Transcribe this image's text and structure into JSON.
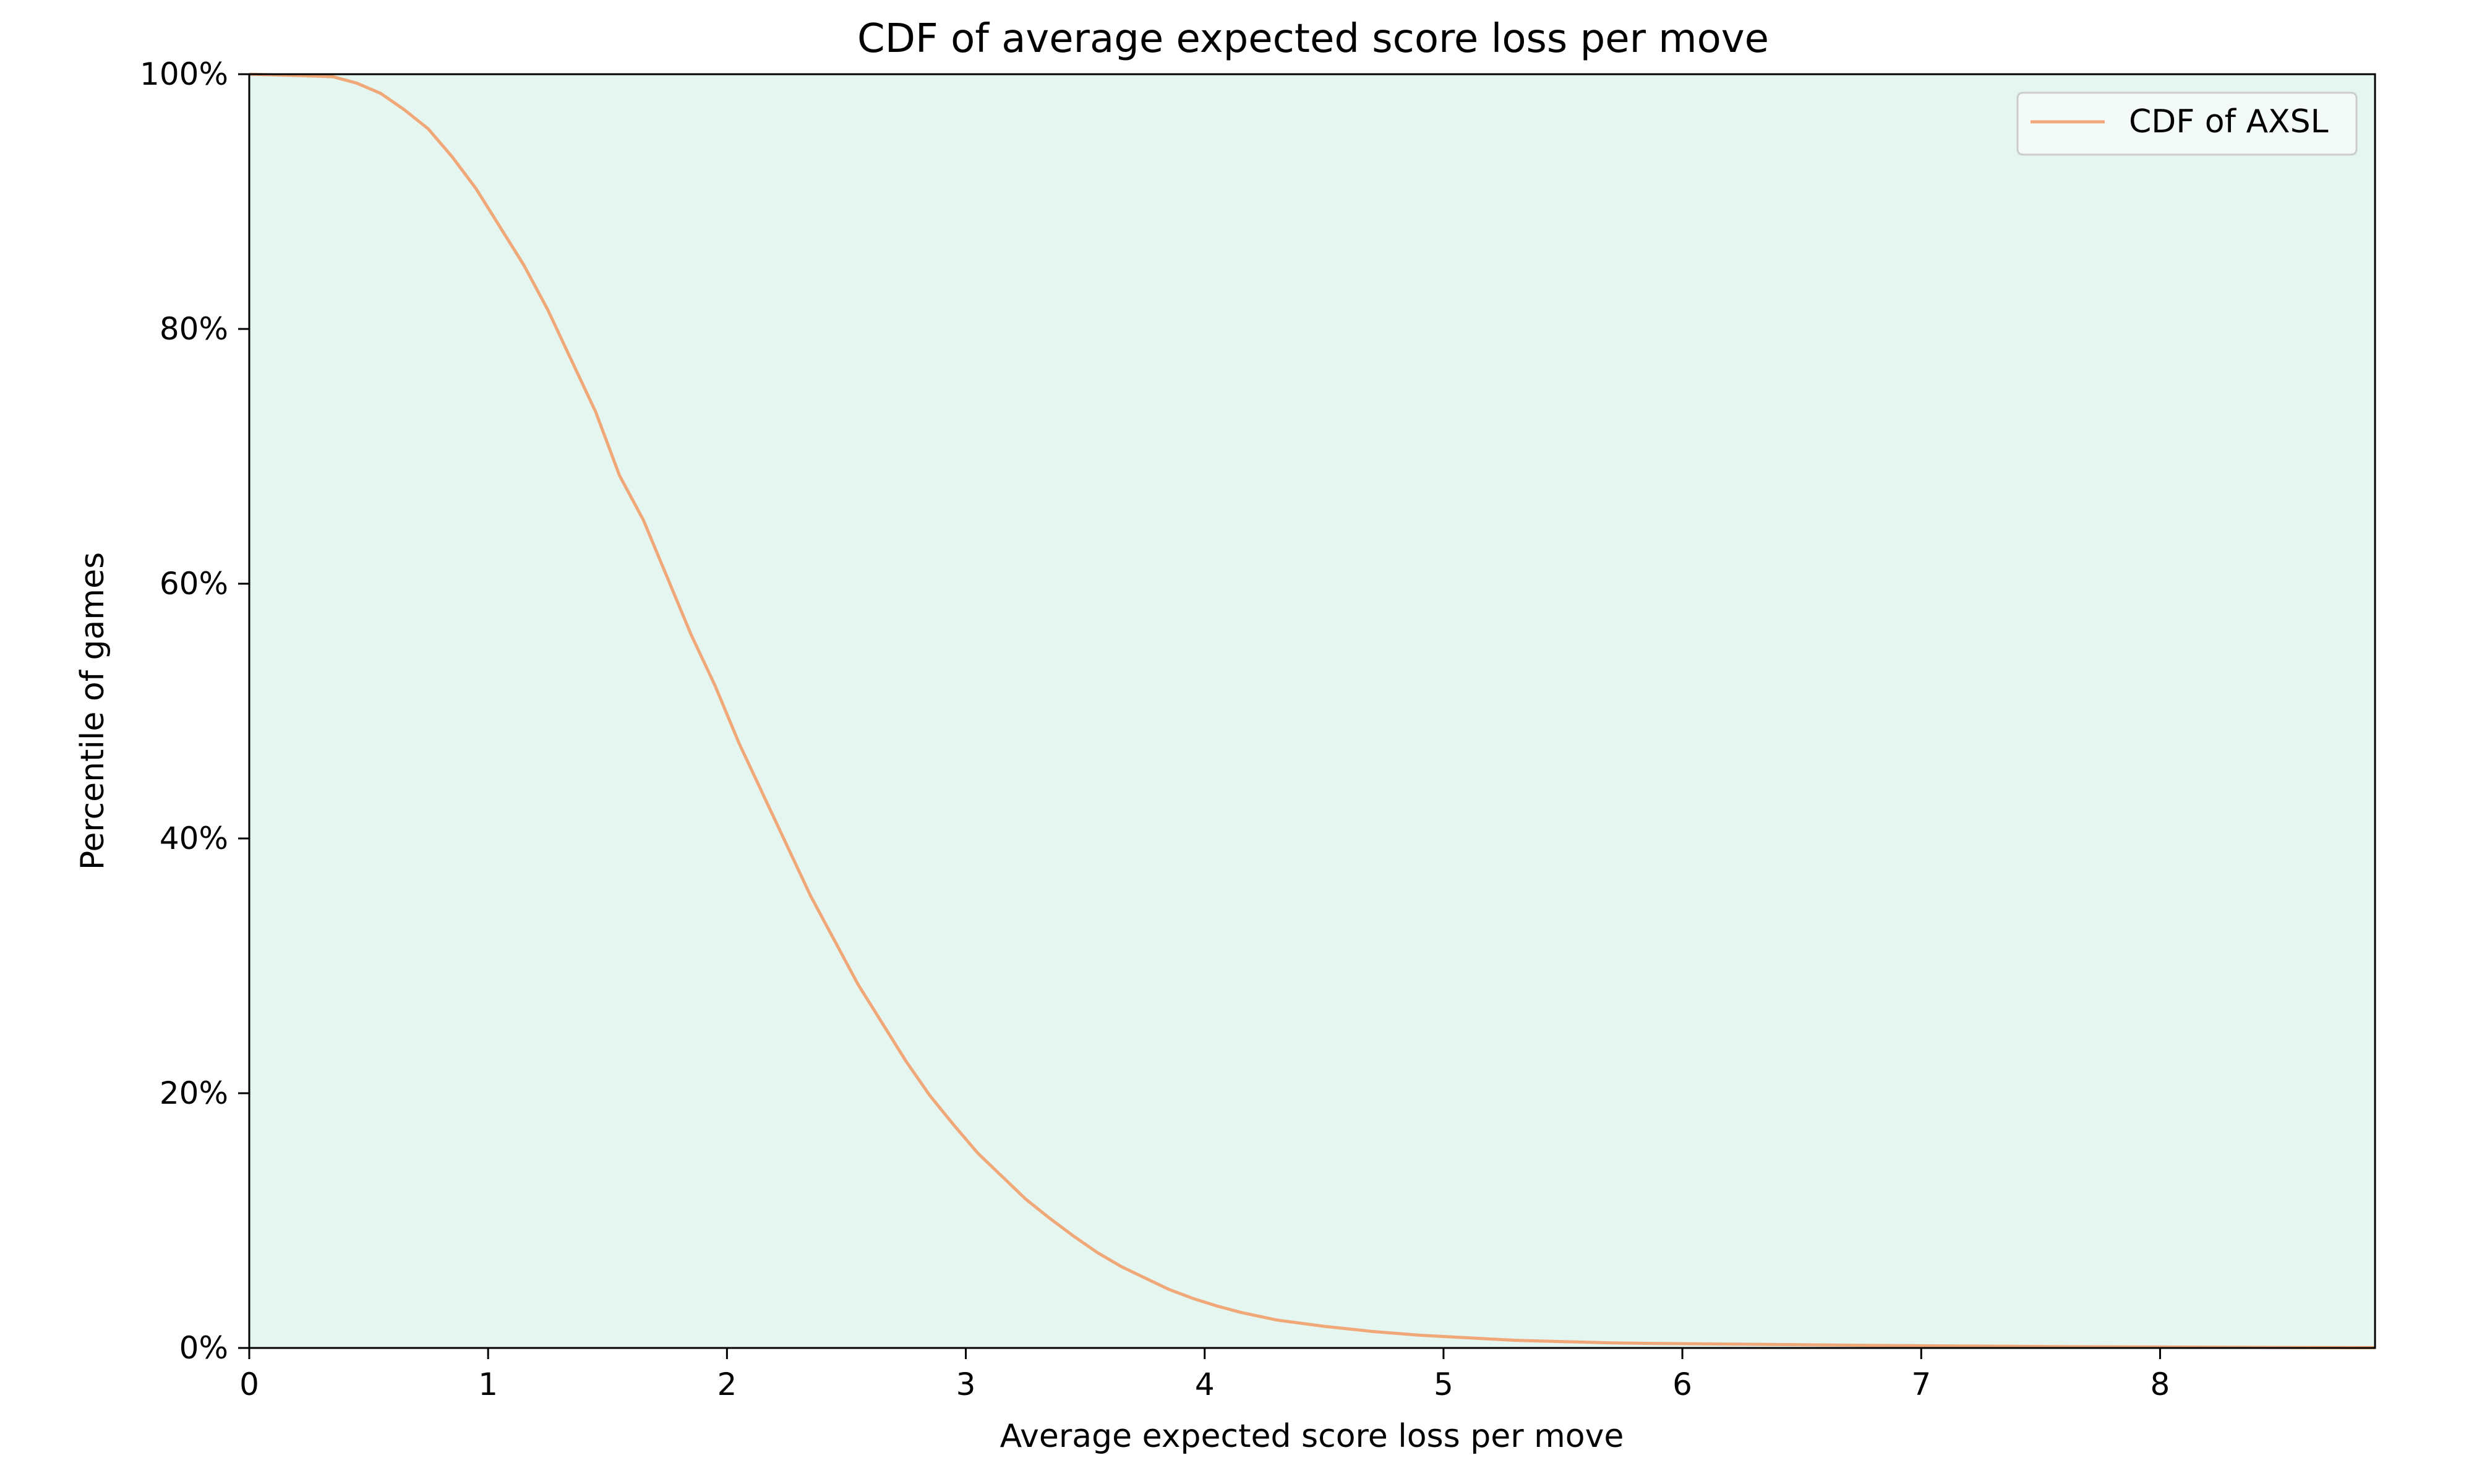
{
  "chart_data": {
    "type": "line",
    "title": "CDF of average expected score loss per move",
    "xlabel": "Average expected score loss per move",
    "ylabel": "Percentile of games",
    "xlim": [
      0,
      8.9
    ],
    "ylim": [
      0,
      100
    ],
    "x_ticks": [
      {
        "value": 0,
        "label": "0"
      },
      {
        "value": 1,
        "label": "1"
      },
      {
        "value": 2,
        "label": "2"
      },
      {
        "value": 3,
        "label": "3"
      },
      {
        "value": 4,
        "label": "4"
      },
      {
        "value": 5,
        "label": "5"
      },
      {
        "value": 6,
        "label": "6"
      },
      {
        "value": 7,
        "label": "7"
      },
      {
        "value": 8,
        "label": "8"
      }
    ],
    "y_ticks": [
      {
        "value": 0,
        "label": "0%"
      },
      {
        "value": 20,
        "label": "20%"
      },
      {
        "value": 40,
        "label": "40%"
      },
      {
        "value": 60,
        "label": "60%"
      },
      {
        "value": 80,
        "label": "80%"
      },
      {
        "value": 100,
        "label": "100%"
      }
    ],
    "grid": false,
    "legend_position": "top-right",
    "plot_background": "#e5f5ef",
    "series": [
      {
        "name": "CDF of AXSL",
        "color": "#f0a878",
        "x": [
          0,
          0.2,
          0.35,
          0.45,
          0.55,
          0.65,
          0.75,
          0.85,
          0.95,
          1.05,
          1.15,
          1.25,
          1.35,
          1.45,
          1.55,
          1.65,
          1.75,
          1.85,
          1.95,
          2.05,
          2.15,
          2.25,
          2.35,
          2.45,
          2.55,
          2.65,
          2.75,
          2.85,
          2.95,
          3.05,
          3.15,
          3.25,
          3.35,
          3.45,
          3.55,
          3.65,
          3.75,
          3.85,
          3.95,
          4.05,
          4.15,
          4.3,
          4.5,
          4.7,
          4.9,
          5.1,
          5.3,
          5.5,
          5.7,
          5.9,
          6.2,
          6.5,
          6.8,
          7.2,
          7.6,
          8.0,
          8.4,
          8.9
        ],
        "y": [
          100,
          99.9,
          99.8,
          99.3,
          98.5,
          97.2,
          95.7,
          93.5,
          91,
          88,
          85,
          81.5,
          77.5,
          73.5,
          68.5,
          65,
          60.5,
          56,
          52,
          47.5,
          43.5,
          39.5,
          35.5,
          32,
          28.5,
          25.5,
          22.5,
          19.8,
          17.5,
          15.3,
          13.5,
          11.7,
          10.2,
          8.8,
          7.5,
          6.4,
          5.5,
          4.6,
          3.9,
          3.3,
          2.8,
          2.2,
          1.7,
          1.3,
          1.0,
          0.8,
          0.6,
          0.5,
          0.4,
          0.35,
          0.3,
          0.25,
          0.2,
          0.15,
          0.1,
          0.08,
          0.05,
          0.03
        ]
      }
    ]
  }
}
